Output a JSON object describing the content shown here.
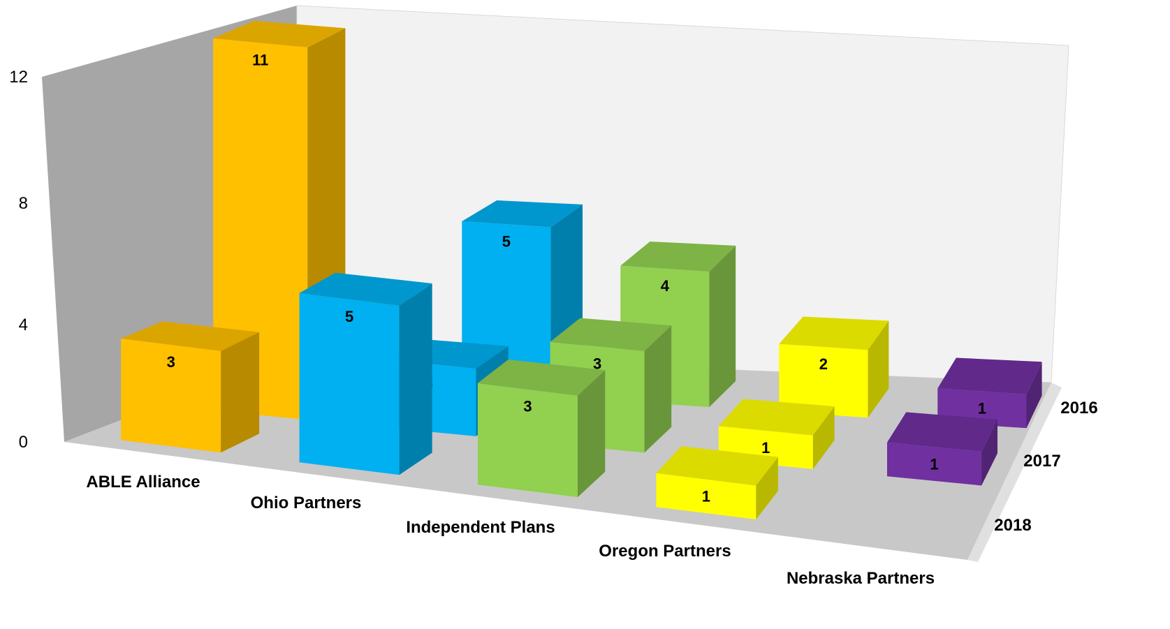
{
  "chart_data": {
    "type": "bar",
    "variant": "3d-column",
    "title": "",
    "categories": [
      "ABLE Alliance",
      "Ohio Partners",
      "Independent Plans",
      "Oregon Partners",
      "Nebraska Partners"
    ],
    "series": [
      {
        "name": "2016",
        "values": [
          2,
          5,
          4,
          2,
          1
        ]
      },
      {
        "name": "2017",
        "values": [
          11,
          2,
          3,
          1,
          1
        ]
      },
      {
        "name": "2018",
        "values": [
          3,
          5,
          3,
          1,
          0
        ]
      }
    ],
    "ylim": [
      0,
      12
    ],
    "yticks": [
      "0",
      "4",
      "8",
      "12"
    ],
    "grid": false,
    "legend": "none",
    "colors": {
      "ABLE Alliance": "#FFC000",
      "Ohio Partners": "#00B0F0",
      "Independent Plans": "#92D050",
      "Oregon Partners": "#FFFF00",
      "Nebraska Partners": "#7030A0"
    },
    "wall_colors": {
      "side": "#A6A6A6",
      "back": "#F2F2F2",
      "floor": "#C8C8C8"
    }
  }
}
